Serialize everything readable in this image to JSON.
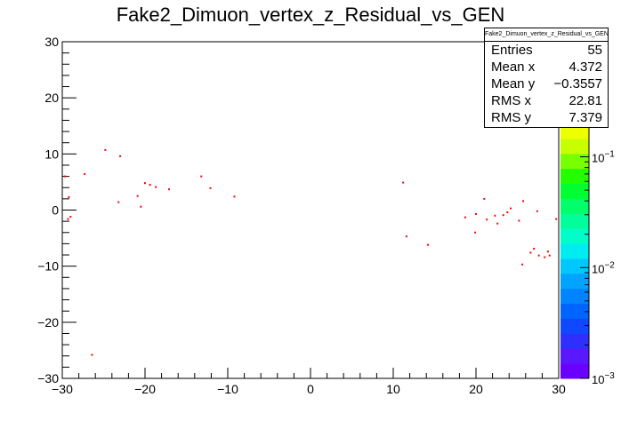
{
  "chart_data": {
    "type": "scatter",
    "title": "Fake2_Dimuon_vertex_z_Residual_vs_GEN",
    "xlabel": "",
    "ylabel": "",
    "xlim": [
      -30,
      30
    ],
    "ylim": [
      -30,
      30
    ],
    "x_ticks": [
      -30,
      -20,
      -10,
      0,
      10,
      20,
      30
    ],
    "x_tick_labels": [
      "−30",
      "−20",
      "−10",
      "0",
      "10",
      "20",
      "30"
    ],
    "y_ticks": [
      -30,
      -20,
      -10,
      0,
      10,
      20,
      30
    ],
    "y_tick_labels": [
      "−30",
      "−20",
      "−10",
      "0",
      "10",
      "20",
      "30"
    ],
    "marker_color": "#ff0000",
    "points": [
      {
        "x": -29.7,
        "y": 6.0
      },
      {
        "x": -29.2,
        "y": 2.3
      },
      {
        "x": -29.0,
        "y": -1.2
      },
      {
        "x": -29.3,
        "y": -1.6
      },
      {
        "x": -27.3,
        "y": 6.4
      },
      {
        "x": -24.8,
        "y": 10.7
      },
      {
        "x": -23.0,
        "y": 9.6
      },
      {
        "x": -23.2,
        "y": 1.4
      },
      {
        "x": -20.9,
        "y": 2.5
      },
      {
        "x": -20.5,
        "y": 0.6
      },
      {
        "x": -20.0,
        "y": 4.8
      },
      {
        "x": -19.4,
        "y": 4.5
      },
      {
        "x": -18.7,
        "y": 4.1
      },
      {
        "x": -17.1,
        "y": 3.7
      },
      {
        "x": -13.2,
        "y": 6.0
      },
      {
        "x": -12.1,
        "y": 3.9
      },
      {
        "x": -9.2,
        "y": 2.4
      },
      {
        "x": -26.4,
        "y": -25.8
      },
      {
        "x": 11.2,
        "y": 4.9
      },
      {
        "x": 11.6,
        "y": -4.7
      },
      {
        "x": 14.2,
        "y": -6.2
      },
      {
        "x": 18.7,
        "y": -1.3
      },
      {
        "x": 20.0,
        "y": -0.7
      },
      {
        "x": 19.9,
        "y": -4.0
      },
      {
        "x": 21.0,
        "y": 2.0
      },
      {
        "x": 21.3,
        "y": -1.7
      },
      {
        "x": 22.3,
        "y": -1.0
      },
      {
        "x": 22.6,
        "y": -2.4
      },
      {
        "x": 23.3,
        "y": -0.9
      },
      {
        "x": 23.8,
        "y": -0.4
      },
      {
        "x": 24.2,
        "y": 0.3
      },
      {
        "x": 25.2,
        "y": -1.9
      },
      {
        "x": 25.7,
        "y": 1.6
      },
      {
        "x": 25.6,
        "y": -9.7
      },
      {
        "x": 26.6,
        "y": -7.6
      },
      {
        "x": 27.0,
        "y": -6.9
      },
      {
        "x": 27.4,
        "y": -0.2
      },
      {
        "x": 27.6,
        "y": -8.1
      },
      {
        "x": 28.3,
        "y": -8.4
      },
      {
        "x": 28.7,
        "y": -7.4
      },
      {
        "x": 28.9,
        "y": -8.1
      },
      {
        "x": 29.7,
        "y": -1.6
      }
    ],
    "stats": {
      "name": "Fake2_Dimuon_vertex_z_Residual_vs_GEN",
      "rows": [
        {
          "label": "Entries",
          "value": "55"
        },
        {
          "label": "Mean x",
          "value": "4.372"
        },
        {
          "label": "Mean y",
          "value": "−0.3557"
        },
        {
          "label": "RMS x",
          "value": "22.81"
        },
        {
          "label": "RMS y",
          "value": "7.379"
        }
      ]
    },
    "colorbar": {
      "log_scale": true,
      "range": [
        0.001,
        0.2
      ],
      "tick_labels": [
        "10",
        "10",
        "10"
      ],
      "tick_exponents": [
        "−1",
        "−2",
        "−3"
      ],
      "tick_values": [
        0.1,
        0.01,
        0.001
      ],
      "colors": [
        "#6a00ff",
        "#5a18ff",
        "#2f2fff",
        "#1048ff",
        "#0064ff",
        "#0084ff",
        "#00a4ff",
        "#00c8ff",
        "#00ecf0",
        "#00ffc8",
        "#00ff9a",
        "#00ff6a",
        "#00ff30",
        "#24ff00",
        "#78ff00",
        "#c8ff00",
        "#eeff00"
      ]
    }
  }
}
